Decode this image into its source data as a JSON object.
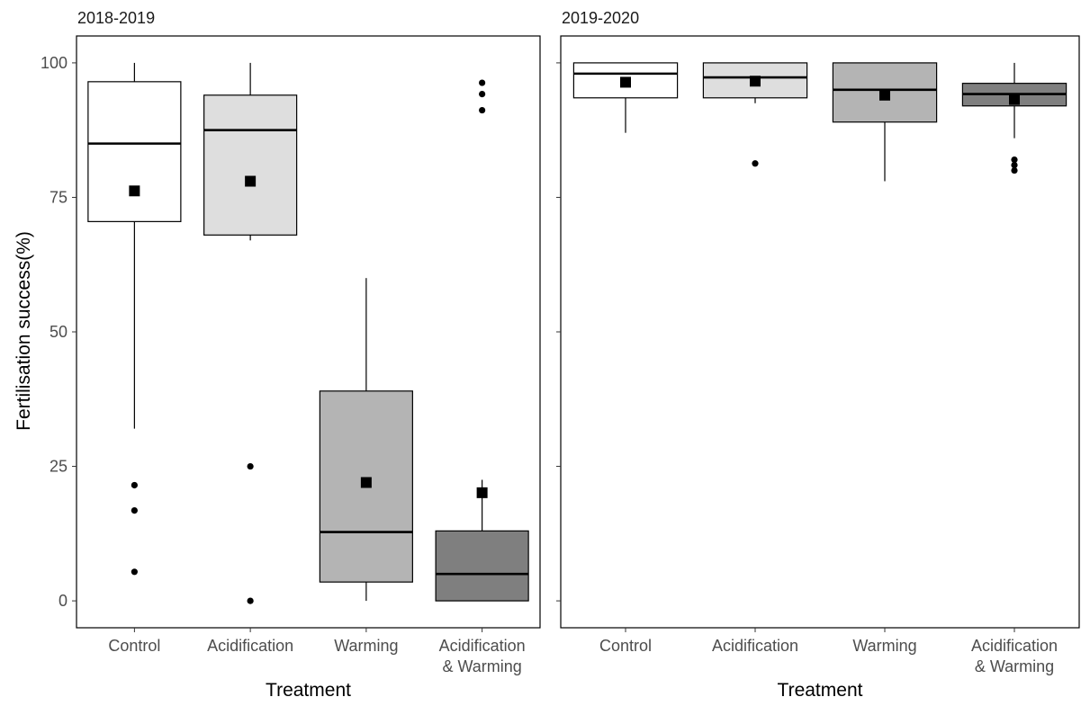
{
  "chart_data": {
    "type": "boxplot",
    "xlabel": "Treatment",
    "ylabel": "Fertilisation success(%)",
    "ylim": [
      -5,
      105
    ],
    "yticks": [
      0,
      25,
      50,
      75,
      100
    ],
    "categories": [
      [
        "Control"
      ],
      [
        "Acidification"
      ],
      [
        "Warming"
      ],
      [
        "Acidification",
        "& Warming"
      ]
    ],
    "fills": [
      "#ffffff",
      "#dedede",
      "#b4b4b4",
      "#7f7f7f"
    ],
    "mean_marker": "filled-square",
    "outlier_marker": "filled-circle",
    "panels": [
      {
        "title": "2018-2019",
        "boxes": [
          {
            "category": "Control",
            "whisker_low": 32,
            "q1": 70.5,
            "median": 85,
            "q3": 96.5,
            "whisker_high": 100,
            "mean": 76.2,
            "outliers": [
              21.5,
              16.8,
              5.4
            ]
          },
          {
            "category": "Acidification",
            "whisker_low": 67,
            "q1": 68,
            "median": 87.5,
            "q3": 94,
            "whisker_high": 100,
            "mean": 78,
            "outliers": [
              25,
              0
            ]
          },
          {
            "category": "Warming",
            "whisker_low": 0,
            "q1": 3.5,
            "median": 12.8,
            "q3": 39,
            "whisker_high": 60,
            "mean": 22,
            "outliers": []
          },
          {
            "category": "Acidification & Warming",
            "whisker_low": 0,
            "q1": 0,
            "median": 5,
            "q3": 13,
            "whisker_high": 22.5,
            "mean": 20.1,
            "outliers": [
              96.3,
              94.2,
              91.2
            ]
          }
        ]
      },
      {
        "title": "2019-2020",
        "boxes": [
          {
            "category": "Control",
            "whisker_low": 87,
            "q1": 93.5,
            "median": 98,
            "q3": 100,
            "whisker_high": 100,
            "mean": 96.4,
            "outliers": []
          },
          {
            "category": "Acidification",
            "whisker_low": 92.5,
            "q1": 93.5,
            "median": 97.3,
            "q3": 100,
            "whisker_high": 100,
            "mean": 96.6,
            "outliers": [
              81.3
            ]
          },
          {
            "category": "Warming",
            "whisker_low": 78,
            "q1": 89,
            "median": 95,
            "q3": 100,
            "whisker_high": 100,
            "mean": 94,
            "outliers": []
          },
          {
            "category": "Acidification & Warming",
            "whisker_low": 86,
            "q1": 92,
            "median": 94.2,
            "q3": 96.2,
            "whisker_high": 100,
            "mean": 93.2,
            "outliers": [
              82,
              81,
              80
            ]
          }
        ]
      }
    ]
  }
}
